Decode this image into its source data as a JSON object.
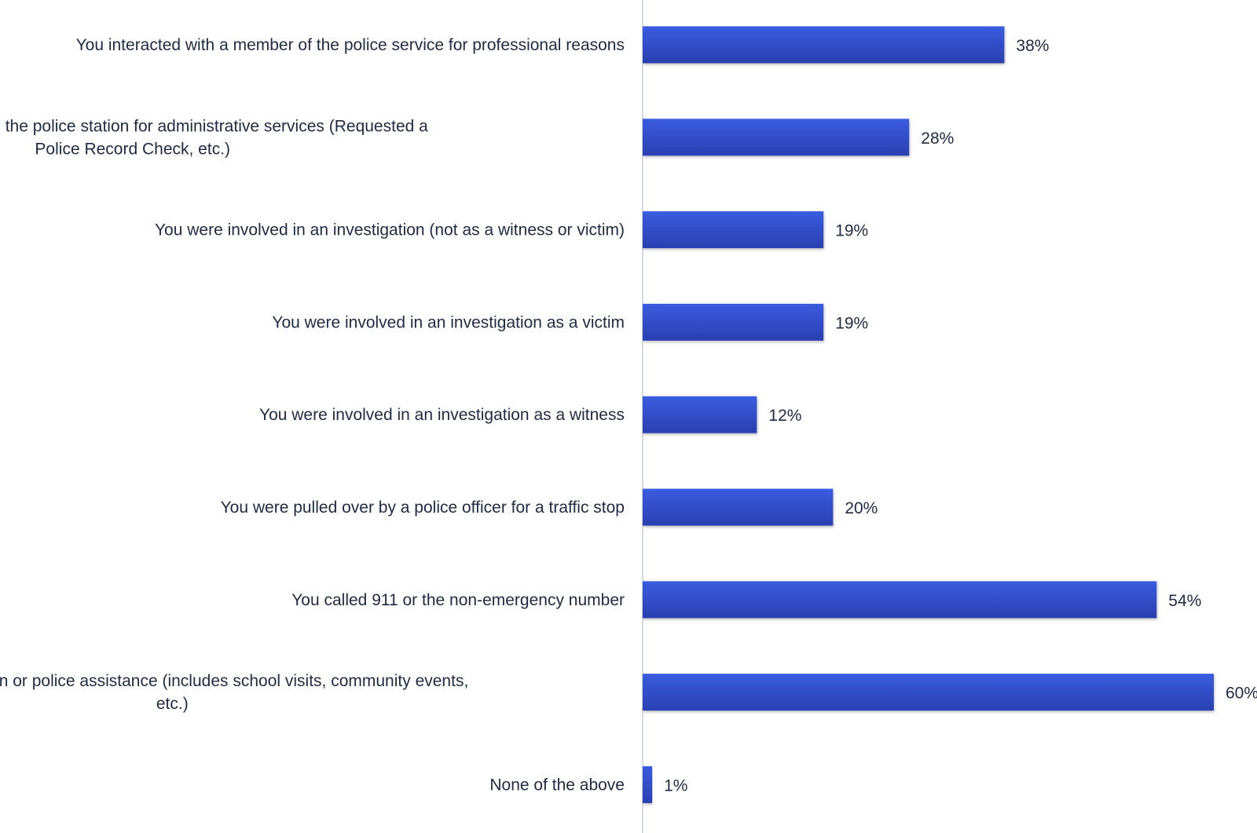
{
  "chart_data": {
    "type": "bar",
    "orientation": "horizontal",
    "categories": [
      "You interacted with a member of the police service for professional reasons",
      "You called or attended the police station for administrative services (Requested a Police Record Check, etc.)",
      "You were involved in an investigation (not as a witness or victim)",
      "You were involved in an investigation as a victim",
      "You were involved in an investigation as a witness",
      "You were pulled over by a police officer for a traffic stop",
      "You called 911 or the non-emergency number",
      "Casual interaction or police assistance (includes school visits, community events, etc.)",
      "None of the above"
    ],
    "category_lines": [
      [
        "You interacted with a member of the police service for professional reasons"
      ],
      [
        "You called or attended the police station for administrative services (Requested a",
        "Police Record Check, etc.)"
      ],
      [
        "You were involved in an investigation (not as a witness or victim)"
      ],
      [
        "You were involved in an investigation as a victim"
      ],
      [
        "You were involved in an investigation as a witness"
      ],
      [
        "You were pulled over by a police officer for a traffic stop"
      ],
      [
        "You called 911 or the non-emergency number"
      ],
      [
        "Casual interaction or police assistance (includes school visits, community events,",
        "etc.)"
      ],
      [
        "None of the above"
      ]
    ],
    "values": [
      38,
      28,
      19,
      19,
      12,
      20,
      54,
      60,
      1
    ],
    "value_labels": [
      "38%",
      "28%",
      "19%",
      "19%",
      "12%",
      "20%",
      "54%",
      "60%",
      "1%"
    ],
    "xlim": [
      0,
      60
    ],
    "colors": {
      "bar_top": "#3a5ce0",
      "bar_bottom": "#2a40b0",
      "axis": "#c8cce0",
      "text": "#1f2a44"
    },
    "title": "",
    "xlabel": "",
    "ylabel": "",
    "grid": false,
    "legend": "none"
  }
}
